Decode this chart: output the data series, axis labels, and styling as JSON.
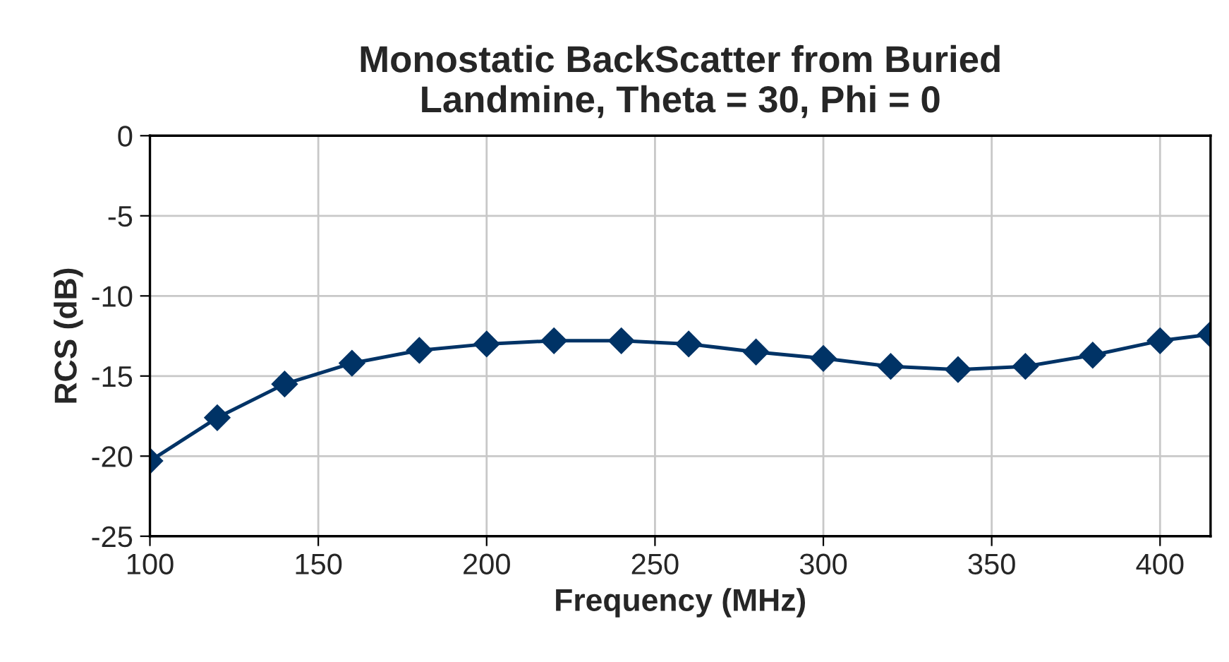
{
  "chart_data": {
    "type": "line",
    "title": "Monostatic BackScatter from Buried\nLandmine, Theta = 30, Phi = 0",
    "xlabel": "Frequency (MHz)",
    "ylabel": "RCS (dB)",
    "series": [
      {
        "color": "#003366",
        "x": [
          100,
          120,
          140,
          160,
          180,
          200,
          220,
          240,
          260,
          280,
          300,
          320,
          340,
          360,
          380,
          400,
          415
        ],
        "values": [
          -20.3,
          -17.6,
          -15.5,
          -14.2,
          -13.4,
          -13.0,
          -12.8,
          -12.8,
          -13.0,
          -13.5,
          -13.9,
          -14.4,
          -14.6,
          -14.4,
          -13.7,
          -12.8,
          -12.4
        ]
      }
    ],
    "xlim": [
      100,
      415
    ],
    "xticks": [
      100,
      150,
      200,
      250,
      300,
      350,
      400
    ],
    "ylim": [
      -25,
      0
    ],
    "yticks": [
      -25,
      -20,
      -15,
      -10,
      -5,
      0
    ],
    "grid": true,
    "marker": "diamond",
    "line_style": "solid",
    "legend": false
  }
}
